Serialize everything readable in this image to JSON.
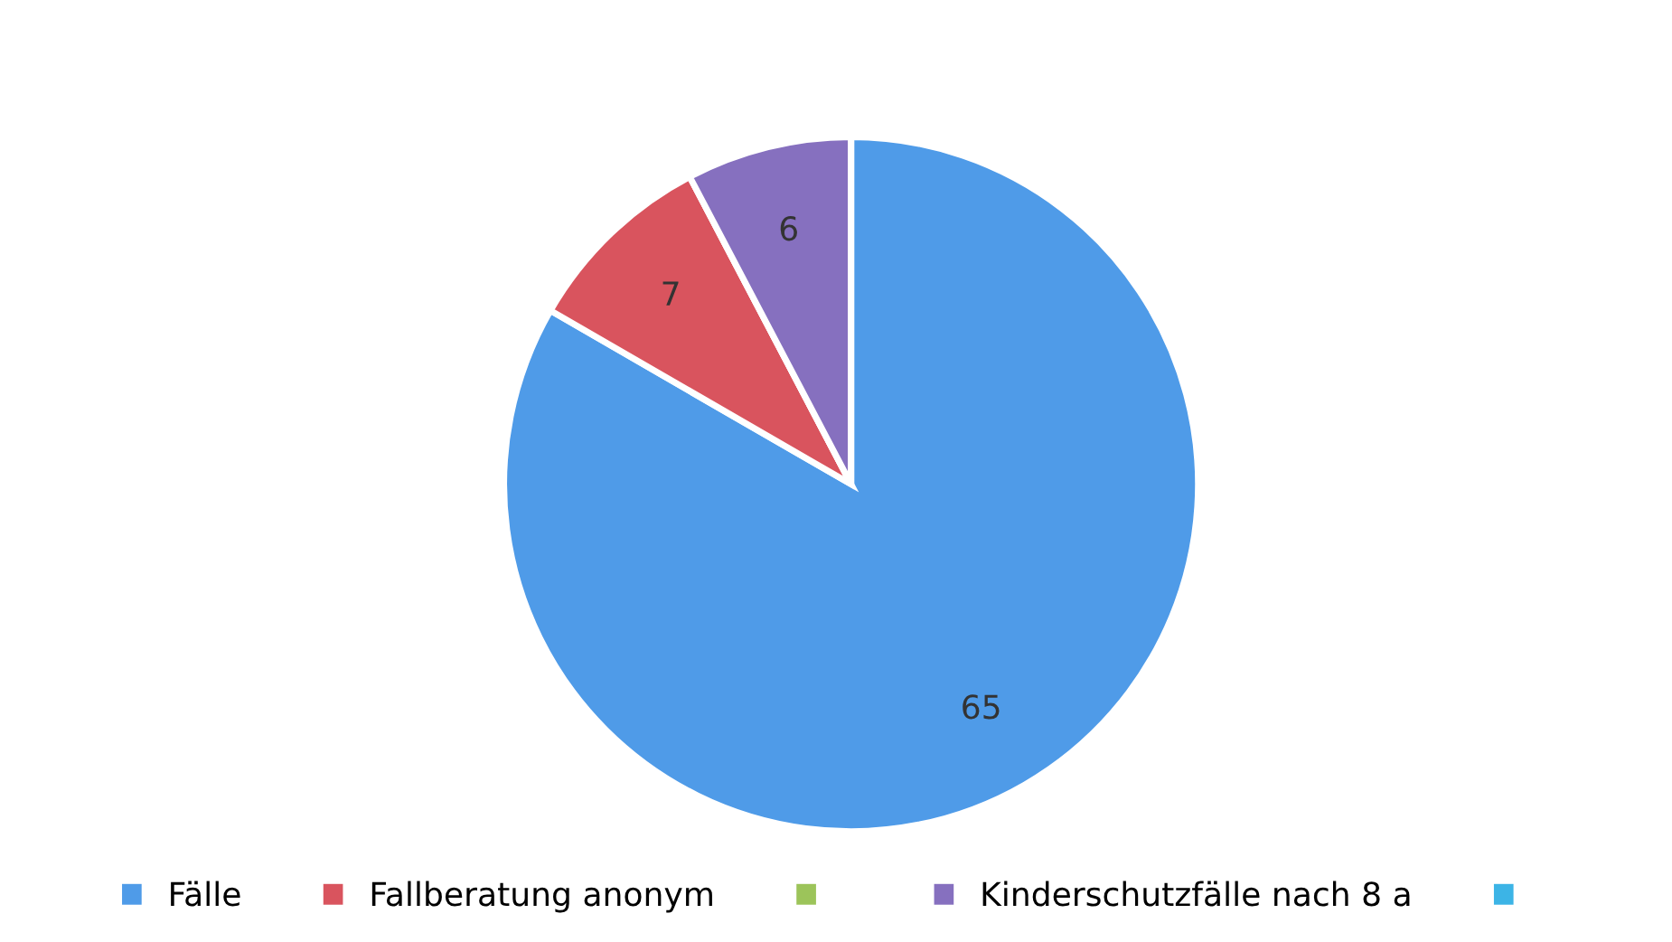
{
  "chart_data": {
    "type": "pie",
    "categories": [
      "Fälle",
      "Fallberatung anonym",
      null,
      "Kinderschutzfälle nach 8 a",
      null
    ],
    "values": [
      65,
      7,
      0,
      6,
      0
    ],
    "colors": [
      "#4f9be8",
      "#d9545e",
      "#9cc45a",
      "#8670bf",
      "#3cb4e6"
    ],
    "value_labels": [
      "65",
      "7",
      null,
      "6",
      null
    ],
    "legend": "bottom"
  }
}
